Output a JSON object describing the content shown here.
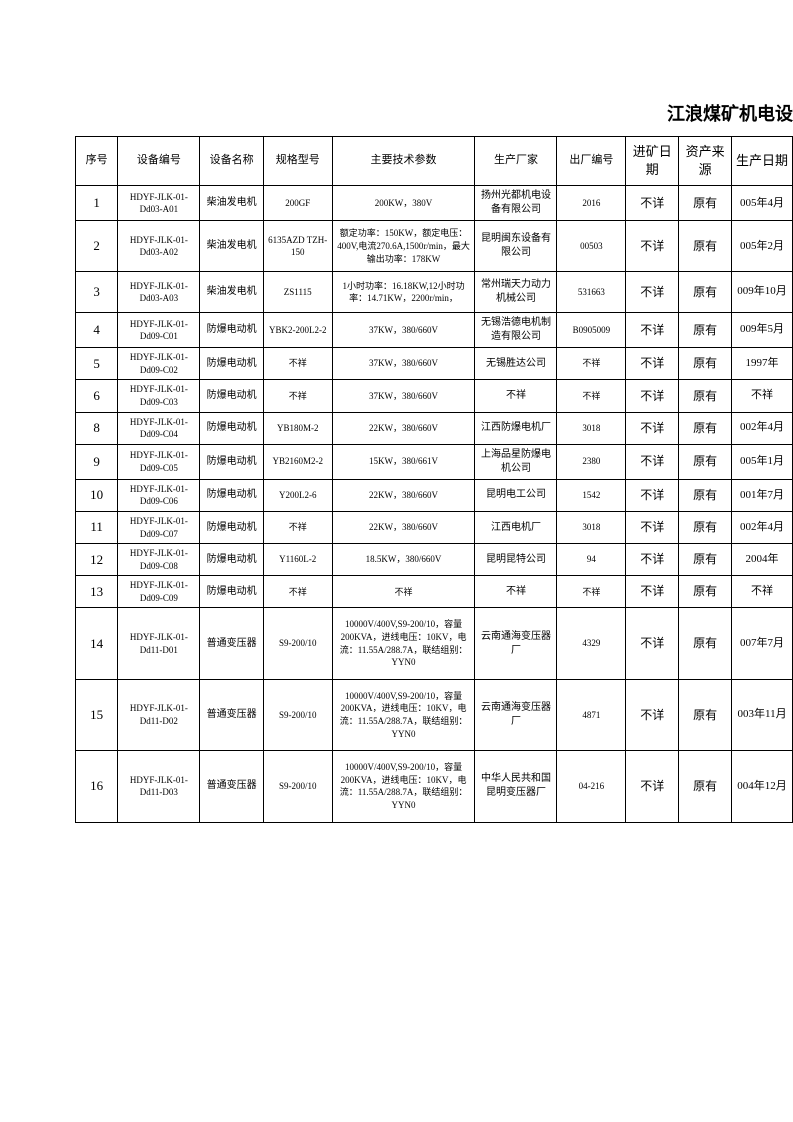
{
  "title": "江浪煤矿机电设",
  "columns": [
    "序号",
    "设备编号",
    "设备名称",
    "规格型号",
    "主要技术参数",
    "生产厂家",
    "出厂编号",
    "进矿日期",
    "资产来源",
    "生产日期"
  ],
  "rows": [
    {
      "seq": "1",
      "code": "HDYF-JLK-01-Dd03-A01",
      "name": "柴油发电机",
      "model": "200GF",
      "param": "200KW，380V",
      "mfr": "扬州光都机电设备有限公司",
      "fac": "2016",
      "mine": "不详",
      "asset": "原有",
      "prod": "005年4月"
    },
    {
      "seq": "2",
      "code": "HDYF-JLK-01-Dd03-A02",
      "name": "柴油发电机",
      "model": "6135AZD TZH-150",
      "param": "额定功率：150KW，额定电压：400V,电流270.6A,1500r/min，最大输出功率：178KW",
      "mfr": "昆明闽东设备有限公司",
      "fac": "00503",
      "mine": "不详",
      "asset": "原有",
      "prod": "005年2月"
    },
    {
      "seq": "3",
      "code": "HDYF-JLK-01-Dd03-A03",
      "name": "柴油发电机",
      "model": "ZS1115",
      "param": "1小时功率：16.18KW,12小时功率：14.71KW，2200r/min，",
      "mfr": "常州瑞天力动力机械公司",
      "fac": "531663",
      "mine": "不详",
      "asset": "原有",
      "prod": "009年10月"
    },
    {
      "seq": "4",
      "code": "HDYF-JLK-01-Dd09-C01",
      "name": "防爆电动机",
      "model": "YBK2-200L2-2",
      "param": "37KW，380/660V",
      "mfr": "无锡浩德电机制造有限公司",
      "fac": "B0905009",
      "mine": "不详",
      "asset": "原有",
      "prod": "009年5月"
    },
    {
      "seq": "5",
      "code": "HDYF-JLK-01-Dd09-C02",
      "name": "防爆电动机",
      "model": "不祥",
      "param": "37KW，380/660V",
      "mfr": "无锡胜达公司",
      "fac": "不祥",
      "mine": "不详",
      "asset": "原有",
      "prod": "1997年"
    },
    {
      "seq": "6",
      "code": "HDYF-JLK-01-Dd09-C03",
      "name": "防爆电动机",
      "model": "不祥",
      "param": "37KW，380/660V",
      "mfr": "不祥",
      "fac": "不祥",
      "mine": "不详",
      "asset": "原有",
      "prod": "不祥"
    },
    {
      "seq": "8",
      "code": "HDYF-JLK-01-Dd09-C04",
      "name": "防爆电动机",
      "model": "YB180M-2",
      "param": "22KW，380/660V",
      "mfr": "江西防爆电机厂",
      "fac": "3018",
      "mine": "不详",
      "asset": "原有",
      "prod": "002年4月"
    },
    {
      "seq": "9",
      "code": "HDYF-JLK-01-Dd09-C05",
      "name": "防爆电动机",
      "model": "YB2160M2-2",
      "param": "15KW，380/661V",
      "mfr": "上海品星防爆电机公司",
      "fac": "2380",
      "mine": "不详",
      "asset": "原有",
      "prod": "005年1月"
    },
    {
      "seq": "10",
      "code": "HDYF-JLK-01-Dd09-C06",
      "name": "防爆电动机",
      "model": "Y200L2-6",
      "param": "22KW，380/660V",
      "mfr": "昆明电工公司",
      "fac": "1542",
      "mine": "不详",
      "asset": "原有",
      "prod": "001年7月"
    },
    {
      "seq": "11",
      "code": "HDYF-JLK-01-Dd09-C07",
      "name": "防爆电动机",
      "model": "不祥",
      "param": "22KW，380/660V",
      "mfr": "江西电机厂",
      "fac": "3018",
      "mine": "不详",
      "asset": "原有",
      "prod": "002年4月"
    },
    {
      "seq": "12",
      "code": "HDYF-JLK-01-Dd09-C08",
      "name": "防爆电动机",
      "model": "Y1160L-2",
      "param": "18.5KW，380/660V",
      "mfr": "昆明昆特公司",
      "fac": "94",
      "mine": "不详",
      "asset": "原有",
      "prod": "2004年"
    },
    {
      "seq": "13",
      "code": "HDYF-JLK-01-Dd09-C09",
      "name": "防爆电动机",
      "model": "不祥",
      "param": "不祥",
      "mfr": "不祥",
      "fac": "不祥",
      "mine": "不详",
      "asset": "原有",
      "prod": "不祥"
    },
    {
      "seq": "14",
      "code": "HDYF-JLK-01-Dd11-D01",
      "name": "普通变压器",
      "model": "S9-200/10",
      "param": "10000V/400V,S9-200/10，容量200KVA，进线电压：10KV，电流：11.55A/288.7A，联结组别：YYN0",
      "mfr": "云南通海变压器厂",
      "fac": "4329",
      "mine": "不详",
      "asset": "原有",
      "prod": "007年7月"
    },
    {
      "seq": "15",
      "code": "HDYF-JLK-01-Dd11-D02",
      "name": "普通变压器",
      "model": "S9-200/10",
      "param": "10000V/400V,S9-200/10，容量200KVA，进线电压：10KV，电流：11.55A/288.7A，联结组别：YYN0",
      "mfr": "云南通海变压器厂",
      "fac": "4871",
      "mine": "不详",
      "asset": "原有",
      "prod": "003年11月"
    },
    {
      "seq": "16",
      "code": "HDYF-JLK-01-Dd11-D03",
      "name": "普通变压器",
      "model": "S9-200/10",
      "param": "10000V/400V,S9-200/10，容量200KVA，进线电压：10KV，电流：11.55A/288.7A，联结组别：YYN0",
      "mfr": "中华人民共和国昆明变压器厂",
      "fac": "04-216",
      "mine": "不详",
      "asset": "原有",
      "prod": "004年12月"
    }
  ]
}
